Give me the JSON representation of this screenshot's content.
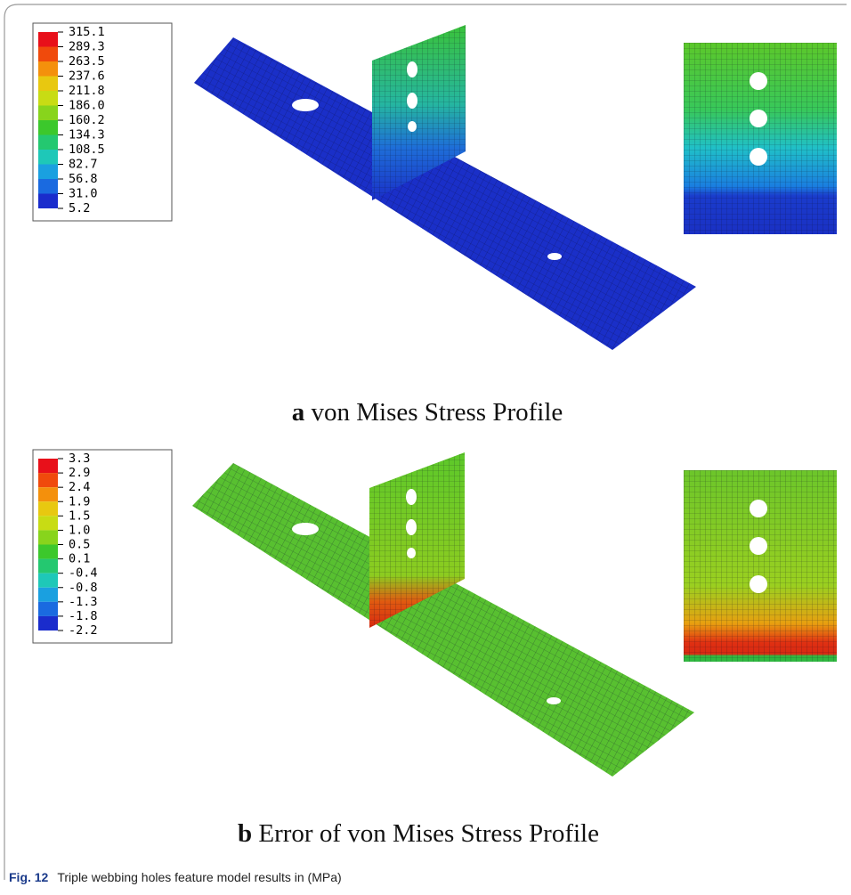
{
  "panels": [
    {
      "label": "a",
      "caption": "von Mises Stress Profile",
      "legend": [
        "315.1",
        "289.3",
        "263.5",
        "237.6",
        "211.8",
        "186.0",
        "160.2",
        "134.3",
        "108.5",
        "82.7",
        "56.8",
        "31.0",
        "5.2"
      ]
    },
    {
      "label": "b",
      "caption": "Error of von Mises Stress Profile",
      "legend": [
        "3.3",
        "2.9",
        "2.4",
        "1.9",
        "1.5",
        "1.0",
        "0.5",
        "0.1",
        "-0.4",
        "-0.8",
        "-1.3",
        "-1.8",
        "-2.2"
      ]
    }
  ],
  "figure_caption": {
    "label": "Fig. 12",
    "text": "Triple webbing holes feature model results in (MPa)"
  }
}
